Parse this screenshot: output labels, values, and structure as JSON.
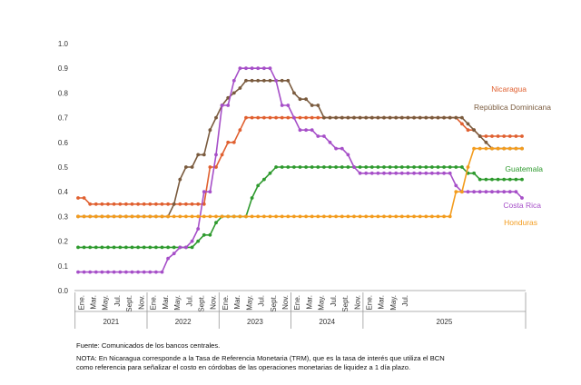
{
  "chart_data": {
    "type": "line",
    "title": "",
    "xlabel": "",
    "ylabel": "",
    "ylim": [
      0,
      1.0
    ],
    "y_ticks": [
      "0.0",
      "0.1",
      "0.2",
      "0.3",
      "0.4",
      "0.5",
      "0.6",
      "0.7",
      "0.8",
      "0.9",
      "1.0"
    ],
    "month_ticks": [
      "Ene.",
      "Mar.",
      "May.",
      "Jul.",
      "Sept.",
      "Nov.",
      "Ene.",
      "Mar.",
      "May.",
      "Jul.",
      "Sept.",
      "Nov.",
      "Ene.",
      "Mar.",
      "May.",
      "Jul.",
      "Sept.",
      "Nov.",
      "Ene.",
      "Mar.",
      "May.",
      "Jul.",
      "Sept.",
      "Nov.",
      "Ene.",
      "Mar.",
      "May.",
      "Jul."
    ],
    "years": [
      "2021",
      "2022",
      "2023",
      "2024",
      "2025"
    ],
    "grid": false,
    "series": [
      {
        "name": "Nicaragua",
        "color": "#E06030",
        "values": [
          0.375,
          0.375,
          0.35,
          0.35,
          0.35,
          0.35,
          0.35,
          0.35,
          0.35,
          0.35,
          0.35,
          0.35,
          0.35,
          0.35,
          0.35,
          0.35,
          0.35,
          0.35,
          0.35,
          0.35,
          0.35,
          0.35,
          0.5,
          0.5,
          0.55,
          0.6,
          0.6,
          0.65,
          0.7,
          0.7,
          0.7,
          0.7,
          0.7,
          0.7,
          0.7,
          0.7,
          0.7,
          0.7,
          0.7,
          0.7,
          0.7,
          0.7,
          0.7,
          0.7,
          0.7,
          0.7,
          0.7,
          0.7,
          0.7,
          0.7,
          0.7,
          0.7,
          0.7,
          0.7,
          0.7,
          0.7,
          0.7,
          0.7,
          0.7,
          0.7,
          0.7,
          0.7,
          0.7,
          0.7,
          0.675,
          0.65,
          0.65,
          0.625,
          0.625,
          0.625,
          0.625,
          0.625,
          0.625,
          0.625,
          0.625
        ]
      },
      {
        "name": "República Dominicana",
        "color": "#7A5B3E",
        "values": [
          0.3,
          0.3,
          0.3,
          0.3,
          0.3,
          0.3,
          0.3,
          0.3,
          0.3,
          0.3,
          0.3,
          0.3,
          0.3,
          0.3,
          0.3,
          0.3,
          0.35,
          0.45,
          0.5,
          0.5,
          0.55,
          0.55,
          0.65,
          0.7,
          0.75,
          0.78,
          0.8,
          0.82,
          0.85,
          0.85,
          0.85,
          0.85,
          0.85,
          0.85,
          0.85,
          0.85,
          0.8,
          0.775,
          0.775,
          0.75,
          0.75,
          0.7,
          0.7,
          0.7,
          0.7,
          0.7,
          0.7,
          0.7,
          0.7,
          0.7,
          0.7,
          0.7,
          0.7,
          0.7,
          0.7,
          0.7,
          0.7,
          0.7,
          0.7,
          0.7,
          0.7,
          0.7,
          0.7,
          0.7,
          0.7,
          0.675,
          0.65,
          0.625,
          0.6,
          0.575,
          0.575,
          0.575,
          0.575,
          0.575,
          0.575
        ]
      },
      {
        "name": "Guatemala",
        "color": "#2E9A2E",
        "values": [
          0.175,
          0.175,
          0.175,
          0.175,
          0.175,
          0.175,
          0.175,
          0.175,
          0.175,
          0.175,
          0.175,
          0.175,
          0.175,
          0.175,
          0.175,
          0.175,
          0.175,
          0.175,
          0.175,
          0.175,
          0.2,
          0.225,
          0.225,
          0.275,
          0.3,
          0.3,
          0.3,
          0.3,
          0.3,
          0.375,
          0.425,
          0.45,
          0.475,
          0.5,
          0.5,
          0.5,
          0.5,
          0.5,
          0.5,
          0.5,
          0.5,
          0.5,
          0.5,
          0.5,
          0.5,
          0.5,
          0.5,
          0.5,
          0.5,
          0.5,
          0.5,
          0.5,
          0.5,
          0.5,
          0.5,
          0.5,
          0.5,
          0.5,
          0.5,
          0.5,
          0.5,
          0.5,
          0.5,
          0.5,
          0.5,
          0.475,
          0.475,
          0.45,
          0.45,
          0.45,
          0.45,
          0.45,
          0.45,
          0.45,
          0.45
        ]
      },
      {
        "name": "Costa Rica",
        "color": "#A64FC8",
        "values": [
          0.075,
          0.075,
          0.075,
          0.075,
          0.075,
          0.075,
          0.075,
          0.075,
          0.075,
          0.075,
          0.075,
          0.075,
          0.075,
          0.075,
          0.075,
          0.13,
          0.15,
          0.175,
          0.175,
          0.2,
          0.25,
          0.4,
          0.4,
          0.55,
          0.75,
          0.75,
          0.85,
          0.9,
          0.9,
          0.9,
          0.9,
          0.9,
          0.9,
          0.85,
          0.75,
          0.75,
          0.7,
          0.65,
          0.65,
          0.65,
          0.625,
          0.625,
          0.6,
          0.575,
          0.575,
          0.55,
          0.5,
          0.475,
          0.475,
          0.475,
          0.475,
          0.475,
          0.475,
          0.475,
          0.475,
          0.475,
          0.475,
          0.475,
          0.475,
          0.475,
          0.475,
          0.475,
          0.475,
          0.425,
          0.4,
          0.4,
          0.4,
          0.4,
          0.4,
          0.4,
          0.4,
          0.4,
          0.4,
          0.4,
          0.375
        ]
      },
      {
        "name": "Honduras",
        "color": "#F39C1E",
        "values": [
          0.3,
          0.3,
          0.3,
          0.3,
          0.3,
          0.3,
          0.3,
          0.3,
          0.3,
          0.3,
          0.3,
          0.3,
          0.3,
          0.3,
          0.3,
          0.3,
          0.3,
          0.3,
          0.3,
          0.3,
          0.3,
          0.3,
          0.3,
          0.3,
          0.3,
          0.3,
          0.3,
          0.3,
          0.3,
          0.3,
          0.3,
          0.3,
          0.3,
          0.3,
          0.3,
          0.3,
          0.3,
          0.3,
          0.3,
          0.3,
          0.3,
          0.3,
          0.3,
          0.3,
          0.3,
          0.3,
          0.3,
          0.3,
          0.3,
          0.3,
          0.3,
          0.3,
          0.3,
          0.3,
          0.3,
          0.3,
          0.3,
          0.3,
          0.3,
          0.3,
          0.3,
          0.3,
          0.3,
          0.4,
          0.4,
          0.5,
          0.575,
          0.575,
          0.575,
          0.575,
          0.575,
          0.575,
          0.575,
          0.575,
          0.575
        ]
      }
    ]
  },
  "notes": {
    "source": "Fuente: Comunicados de los bancos centrales.",
    "note": "NOTA: En Nicaragua corresponde a la Tasa de Referencia Monetaria (TRM), que es la tasa de interés que utiliza el BCN como referencia para señalizar el costo en córdobas de las operaciones monetarias de liquidez a 1 día plazo."
  }
}
